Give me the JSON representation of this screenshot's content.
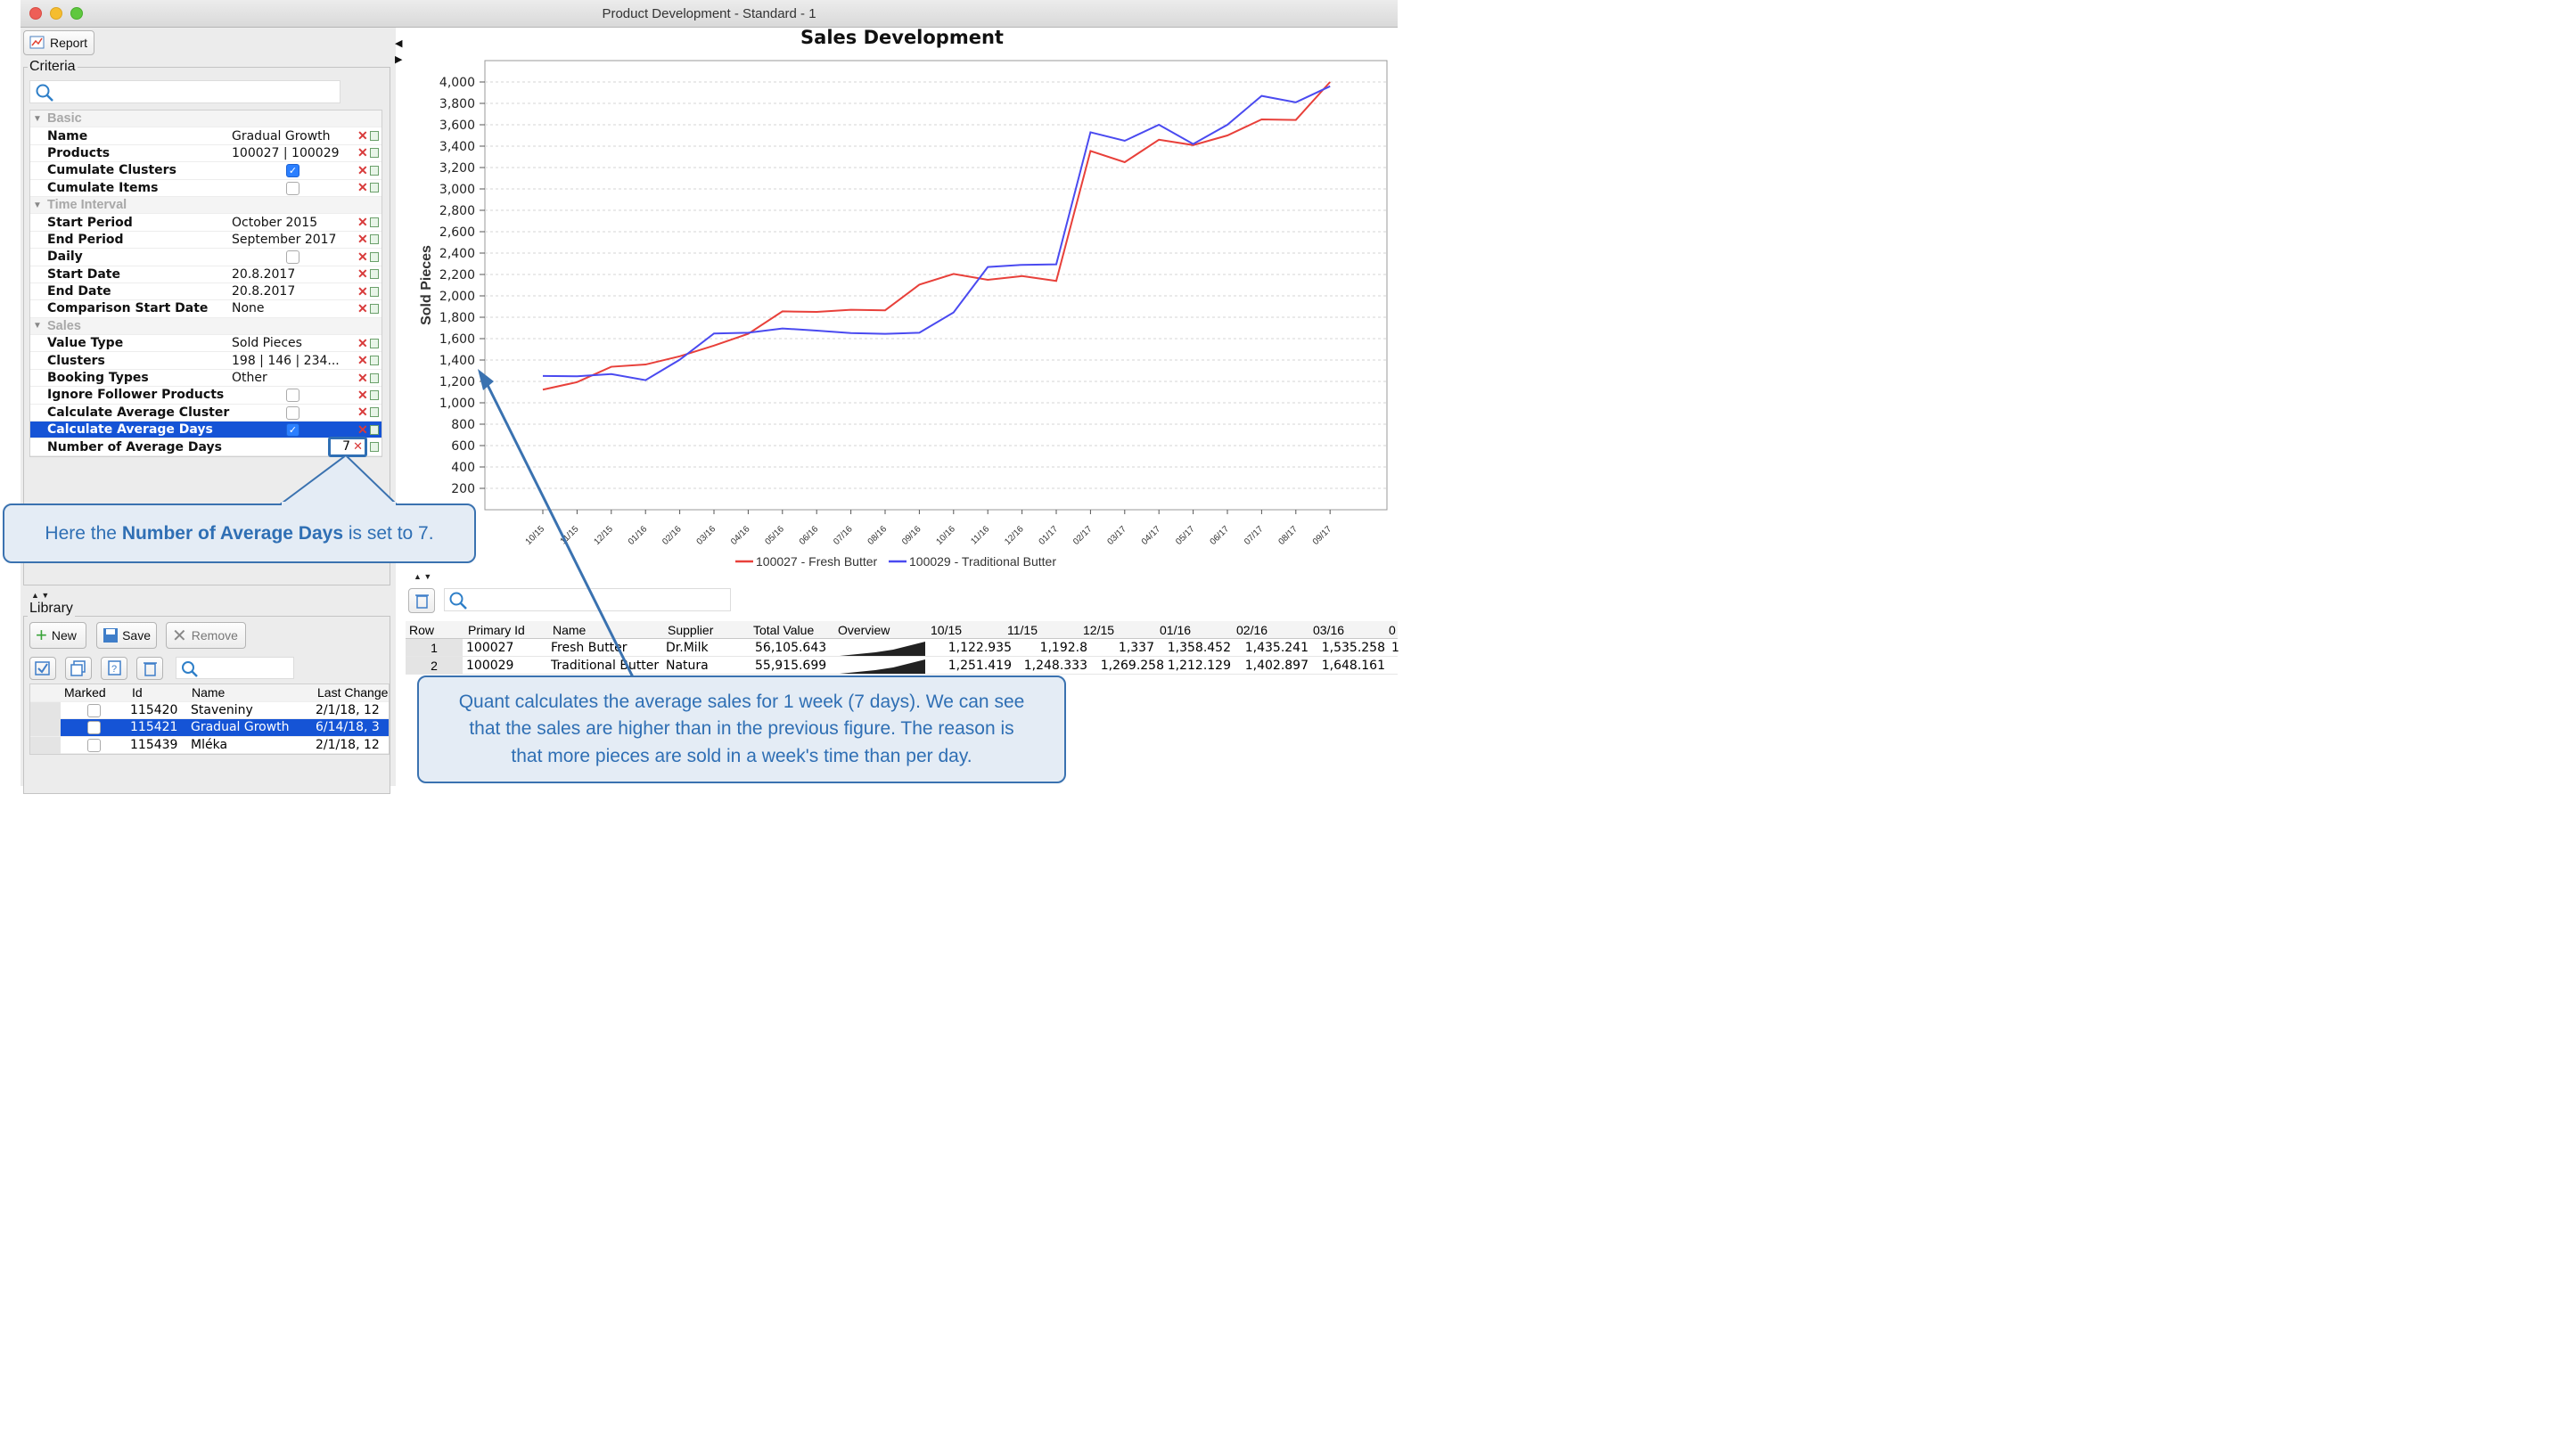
{
  "window": {
    "title": "Product Development - Standard - 1"
  },
  "toolbar": {
    "report_label": "Report"
  },
  "criteria": {
    "title": "Criteria",
    "sections": {
      "basic": "Basic",
      "time": "Time Interval",
      "sales": "Sales"
    },
    "rows": {
      "name": {
        "label": "Name",
        "value": "Gradual Growth"
      },
      "products": {
        "label": "Products",
        "value": "100027 | 100029"
      },
      "cumulate_clusters": {
        "label": "Cumulate Clusters"
      },
      "cumulate_items": {
        "label": "Cumulate Items"
      },
      "start_period": {
        "label": "Start Period",
        "value": "October 2015"
      },
      "end_period": {
        "label": "End Period",
        "value": "September 2017"
      },
      "daily": {
        "label": "Daily"
      },
      "start_date": {
        "label": "Start Date",
        "value": "20.8.2017"
      },
      "end_date": {
        "label": "End Date",
        "value": "20.8.2017"
      },
      "comparison_start_date": {
        "label": "Comparison Start Date",
        "value": "None"
      },
      "value_type": {
        "label": "Value Type",
        "value": "Sold Pieces"
      },
      "clusters": {
        "label": "Clusters",
        "value": "198 | 146 | 234..."
      },
      "booking_types": {
        "label": "Booking Types",
        "value": "Other"
      },
      "ignore_follower": {
        "label": "Ignore Follower Products"
      },
      "calc_avg_cluster": {
        "label": "Calculate Average Cluster"
      },
      "calc_avg_days": {
        "label": "Calculate Average Days"
      },
      "num_avg_days": {
        "label": "Number of Average Days",
        "value": "7"
      }
    }
  },
  "library": {
    "title": "Library",
    "new_label": "New",
    "save_label": "Save",
    "remove_label": "Remove",
    "columns": [
      "Marked",
      "Id",
      "Name",
      "Last Change"
    ],
    "rows": [
      {
        "id": "115420",
        "name": "Staveniny",
        "changed": "2/1/18, 12"
      },
      {
        "id": "115421",
        "name": "Gradual Growth",
        "changed": "6/14/18, 3"
      },
      {
        "id": "115439",
        "name": "Mléka",
        "changed": "2/1/18, 12"
      }
    ]
  },
  "callouts": {
    "avg_days_pre": "Here the ",
    "avg_days_bold": "Number of Average Days",
    "avg_days_post": " is set to 7.",
    "quant_line1": "Quant calculates the average sales for 1 week (7 days). We can see",
    "quant_line2": "that the sales are higher than in the previous figure. The reason is",
    "quant_line3": "that more pieces are sold in a week's time than per day."
  },
  "table": {
    "columns": [
      "Row",
      "Primary Id",
      "Name",
      "Supplier",
      "Total Value",
      "Overview",
      "10/15",
      "11/15",
      "12/15",
      "01/16",
      "02/16",
      "03/16",
      "0"
    ],
    "rows": [
      {
        "row": "1",
        "id": "100027",
        "name": "Fresh Butter",
        "supplier": "Dr.Milk",
        "total": "56,105.643",
        "v": [
          "1,122.935",
          "1,192.8",
          "1,337",
          "1,358.452",
          "1,435.241",
          "1,535.258",
          "1"
        ]
      },
      {
        "row": "2",
        "id": "100029",
        "name": "Traditional Butter",
        "supplier": "Natura",
        "total": "55,915.699",
        "v": [
          "1,251.419",
          "1,248.333",
          "1,269.258",
          "1,212.129",
          "1,402.897",
          "1,648.161",
          ""
        ]
      }
    ]
  },
  "chart_data": {
    "type": "line",
    "title": "Sales Development",
    "xlabel": "",
    "ylabel": "Sold Pieces",
    "ylim": [
      0,
      4100
    ],
    "yticks": [
      200,
      400,
      600,
      800,
      1000,
      1200,
      1400,
      1600,
      1800,
      2000,
      2200,
      2400,
      2600,
      2800,
      3000,
      3200,
      3400,
      3600,
      3800,
      4000
    ],
    "ytick_labels": [
      "200",
      "400",
      "600",
      "800",
      "1,000",
      "1,200",
      "1,400",
      "1,600",
      "1,800",
      "2,000",
      "2,200",
      "2,400",
      "2,600",
      "2,800",
      "3,000",
      "3,200",
      "3,400",
      "3,600",
      "3,800",
      "4,000"
    ],
    "categories": [
      "10/15",
      "11/15",
      "12/15",
      "01/16",
      "02/16",
      "03/16",
      "04/16",
      "05/16",
      "06/16",
      "07/16",
      "08/16",
      "09/16",
      "10/16",
      "11/16",
      "12/16",
      "01/17",
      "02/17",
      "03/17",
      "04/17",
      "05/17",
      "06/17",
      "07/17",
      "08/17",
      "09/17"
    ],
    "grid": true,
    "legend": "bottom",
    "series": [
      {
        "name": "100027 - Fresh Butter",
        "color": "#e8403a",
        "values": [
          1123,
          1193,
          1337,
          1358,
          1435,
          1535,
          1645,
          1855,
          1850,
          1870,
          1865,
          2105,
          2205,
          2150,
          2185,
          2140,
          3355,
          3250,
          3460,
          3410,
          3500,
          3650,
          3645,
          4000
        ]
      },
      {
        "name": "100029 - Traditional Butter",
        "color": "#4a4af0",
        "values": [
          1251,
          1248,
          1269,
          1212,
          1403,
          1648,
          1655,
          1695,
          1675,
          1652,
          1645,
          1655,
          1845,
          2270,
          2290,
          2295,
          3530,
          3450,
          3600,
          3420,
          3600,
          3870,
          3810,
          3960
        ]
      }
    ]
  }
}
